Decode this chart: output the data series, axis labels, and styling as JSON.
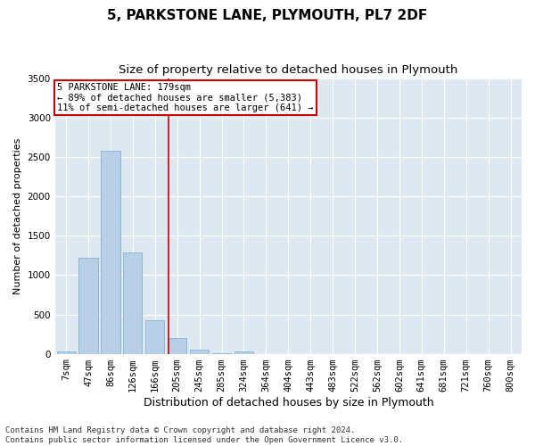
{
  "title": "5, PARKSTONE LANE, PLYMOUTH, PL7 2DF",
  "subtitle": "Size of property relative to detached houses in Plymouth",
  "xlabel": "Distribution of detached houses by size in Plymouth",
  "ylabel": "Number of detached properties",
  "categories": [
    "7sqm",
    "47sqm",
    "86sqm",
    "126sqm",
    "166sqm",
    "205sqm",
    "245sqm",
    "285sqm",
    "324sqm",
    "364sqm",
    "404sqm",
    "443sqm",
    "483sqm",
    "522sqm",
    "562sqm",
    "602sqm",
    "641sqm",
    "681sqm",
    "721sqm",
    "760sqm",
    "800sqm"
  ],
  "bar_heights": [
    25,
    1220,
    2580,
    1290,
    430,
    195,
    55,
    5,
    25,
    0,
    0,
    0,
    0,
    0,
    0,
    0,
    0,
    0,
    0,
    0,
    0
  ],
  "bar_color": "#b8cfe8",
  "bar_edgecolor": "#7aaad0",
  "background_color": "#dde8f0",
  "vline_x": 4.6,
  "vline_color": "#cc0000",
  "annotation_text": "5 PARKSTONE LANE: 179sqm\n← 89% of detached houses are smaller (5,383)\n11% of semi-detached houses are larger (641) →",
  "annotation_box_color": "#cc0000",
  "ylim": [
    0,
    3500
  ],
  "yticks": [
    0,
    500,
    1000,
    1500,
    2000,
    2500,
    3000,
    3500
  ],
  "footer_line1": "Contains HM Land Registry data © Crown copyright and database right 2024.",
  "footer_line2": "Contains public sector information licensed under the Open Government Licence v3.0.",
  "title_fontsize": 11,
  "subtitle_fontsize": 9.5,
  "xlabel_fontsize": 9,
  "ylabel_fontsize": 8,
  "tick_fontsize": 7.5,
  "annotation_fontsize": 7.5,
  "footer_fontsize": 6.5
}
